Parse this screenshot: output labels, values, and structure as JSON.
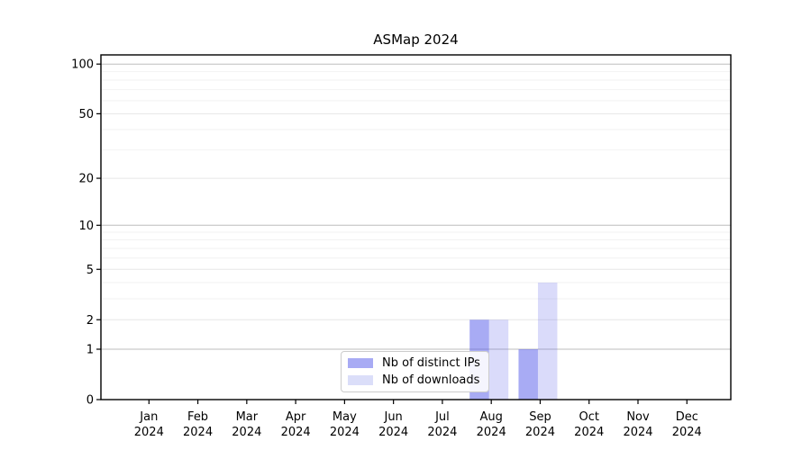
{
  "chart_data": {
    "type": "bar",
    "title": "ASMap 2024",
    "xlabel": "",
    "ylabel": "",
    "categories": [
      "Jan 2024",
      "Feb 2024",
      "Mar 2024",
      "Apr 2024",
      "May 2024",
      "Jun 2024",
      "Jul 2024",
      "Aug 2024",
      "Sep 2024",
      "Oct 2024",
      "Nov 2024",
      "Dec 2024"
    ],
    "series": [
      {
        "name": "Nb of distinct IPs",
        "color": "rgba(81,87,233,0.5)",
        "color_on_white": "#a8abf4",
        "values": [
          0,
          0,
          0,
          0,
          0,
          0,
          0,
          2,
          1,
          0,
          0,
          0
        ]
      },
      {
        "name": "Nb of downloads",
        "color": "rgba(81,87,233,0.21)",
        "color_on_white": "#dbdef9",
        "values": [
          0,
          0,
          0,
          0,
          0,
          0,
          0,
          2,
          4,
          0,
          0,
          0
        ]
      }
    ],
    "y_axis": {
      "scale": "log1p",
      "tick_values": [
        0,
        1,
        2,
        5,
        10,
        20,
        50,
        100
      ],
      "decade_tick_values": [
        1,
        10,
        100
      ],
      "mid_tick_values": [
        2,
        5,
        20,
        50
      ],
      "minor_tick_values": [
        3,
        4,
        6,
        7,
        8,
        9,
        30,
        40,
        60,
        70,
        80,
        90
      ],
      "ylim": [
        0,
        113
      ]
    },
    "legend": {
      "location": "lower center",
      "entries": [
        "Nb of distinct IPs",
        "Nb of downloads"
      ]
    },
    "grid": true
  },
  "colors": {
    "background": "#ffffff",
    "spine": "#000000",
    "tick_text": "#000000",
    "decade_grid": "#bdbdbd",
    "mid_grid": "#e7e7e7",
    "minor_grid": "#f2f2f2",
    "legend_border": "#cccccc",
    "bar_base": "#5157e9"
  }
}
